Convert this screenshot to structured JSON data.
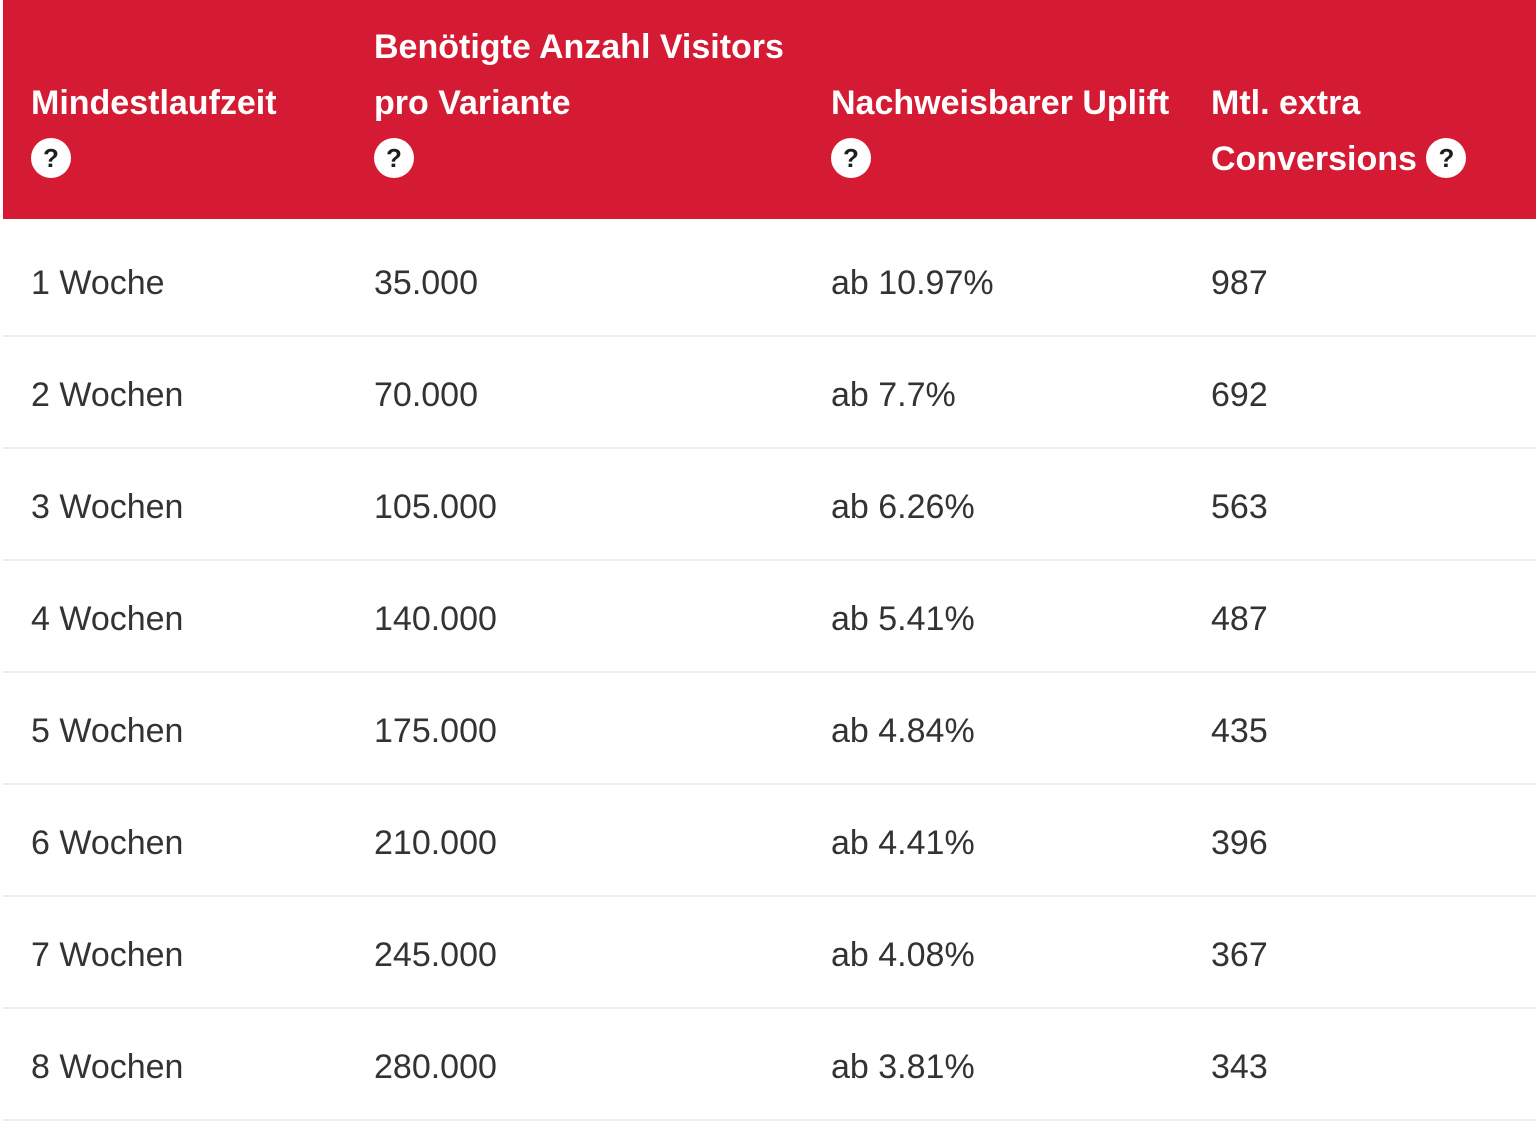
{
  "table": {
    "columns": [
      {
        "label": "Mindestlaufzeit",
        "help": "?"
      },
      {
        "label": "Benötigte Anzahl Visitors pro Variante",
        "help": "?"
      },
      {
        "label": "Nachweisbarer Uplift",
        "help": "?"
      },
      {
        "label": "Mtl. extra Conversions",
        "help": "?"
      }
    ],
    "rows": [
      {
        "duration": "1 Woche",
        "visitors": "35.000",
        "uplift": "ab 10.97%",
        "conversions": "987"
      },
      {
        "duration": "2 Wochen",
        "visitors": "70.000",
        "uplift": "ab 7.7%",
        "conversions": "692"
      },
      {
        "duration": "3 Wochen",
        "visitors": "105.000",
        "uplift": "ab 6.26%",
        "conversions": "563"
      },
      {
        "duration": "4 Wochen",
        "visitors": "140.000",
        "uplift": "ab 5.41%",
        "conversions": "487"
      },
      {
        "duration": "5 Wochen",
        "visitors": "175.000",
        "uplift": "ab 4.84%",
        "conversions": "435"
      },
      {
        "duration": "6 Wochen",
        "visitors": "210.000",
        "uplift": "ab 4.41%",
        "conversions": "396"
      },
      {
        "duration": "7 Wochen",
        "visitors": "245.000",
        "uplift": "ab 4.08%",
        "conversions": "367"
      },
      {
        "duration": "8 Wochen",
        "visitors": "280.000",
        "uplift": "ab 3.81%",
        "conversions": "343"
      }
    ]
  },
  "colors": {
    "header_background": "#d51a33",
    "header_text": "#ffffff",
    "body_text": "#333333",
    "row_divider": "#ececec"
  }
}
